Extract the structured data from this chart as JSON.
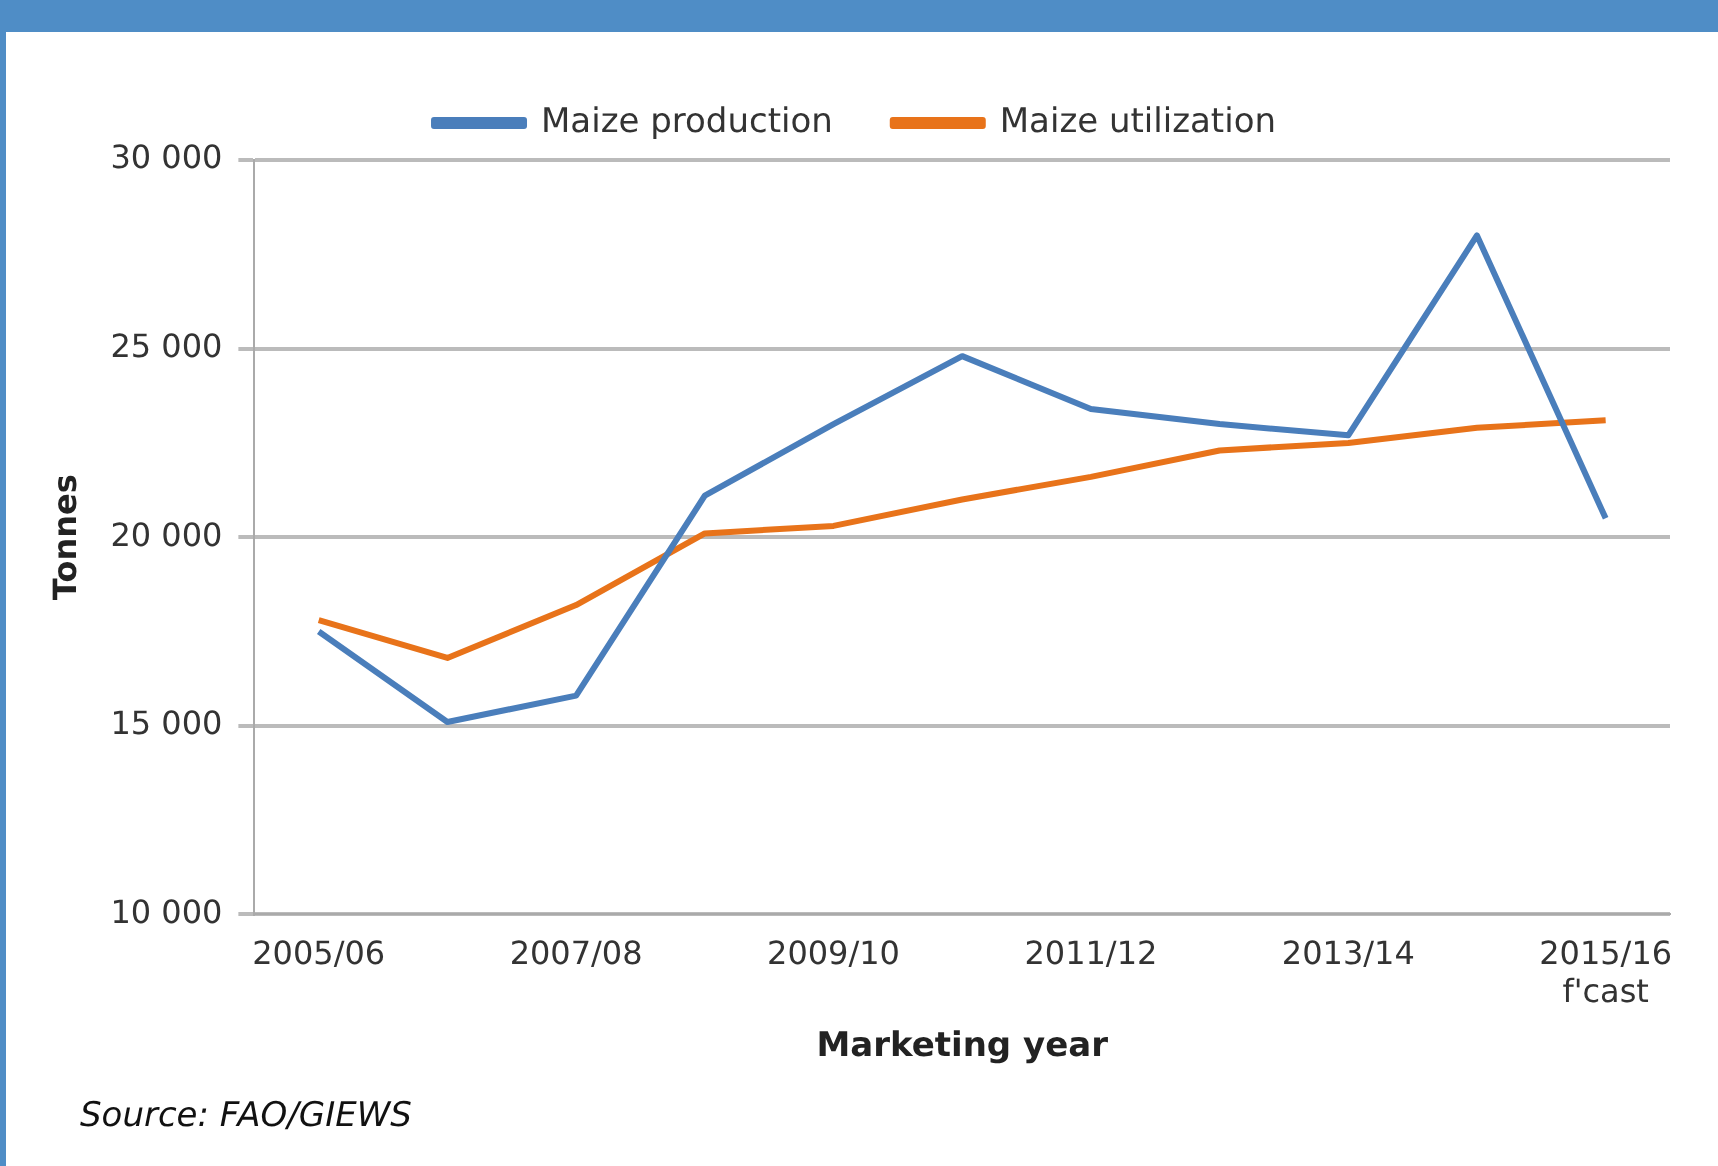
{
  "chart_data": {
    "type": "line",
    "categories": [
      "2005/06",
      null,
      "2007/08",
      null,
      "2009/10",
      null,
      "2011/12",
      null,
      "2013/14",
      null,
      "2015/16\nf'cast"
    ],
    "series": [
      {
        "name": "Maize production",
        "color": "#4a7ebb",
        "values": [
          17500,
          15100,
          15800,
          21100,
          23000,
          24800,
          23400,
          23000,
          22700,
          28000,
          20500
        ]
      },
      {
        "name": "Maize utilization",
        "color": "#e8731a",
        "values": [
          17800,
          16800,
          18200,
          20100,
          20300,
          21000,
          21600,
          22300,
          22500,
          22900,
          23100
        ]
      }
    ],
    "ylim": [
      10000,
      30000
    ],
    "yticks": [
      {
        "value": 10000,
        "label": "10 000"
      },
      {
        "value": 15000,
        "label": "15 000"
      },
      {
        "value": 20000,
        "label": "20 000"
      },
      {
        "value": 25000,
        "label": "25 000"
      },
      {
        "value": 30000,
        "label": "30 000"
      }
    ],
    "xlabel": "Marketing year",
    "ylabel": "Tonnes",
    "grid": "y",
    "legend": "top",
    "marker": "none",
    "line_style": "solid",
    "annotations": [
      "Source:  FAO/GIEWS"
    ]
  }
}
